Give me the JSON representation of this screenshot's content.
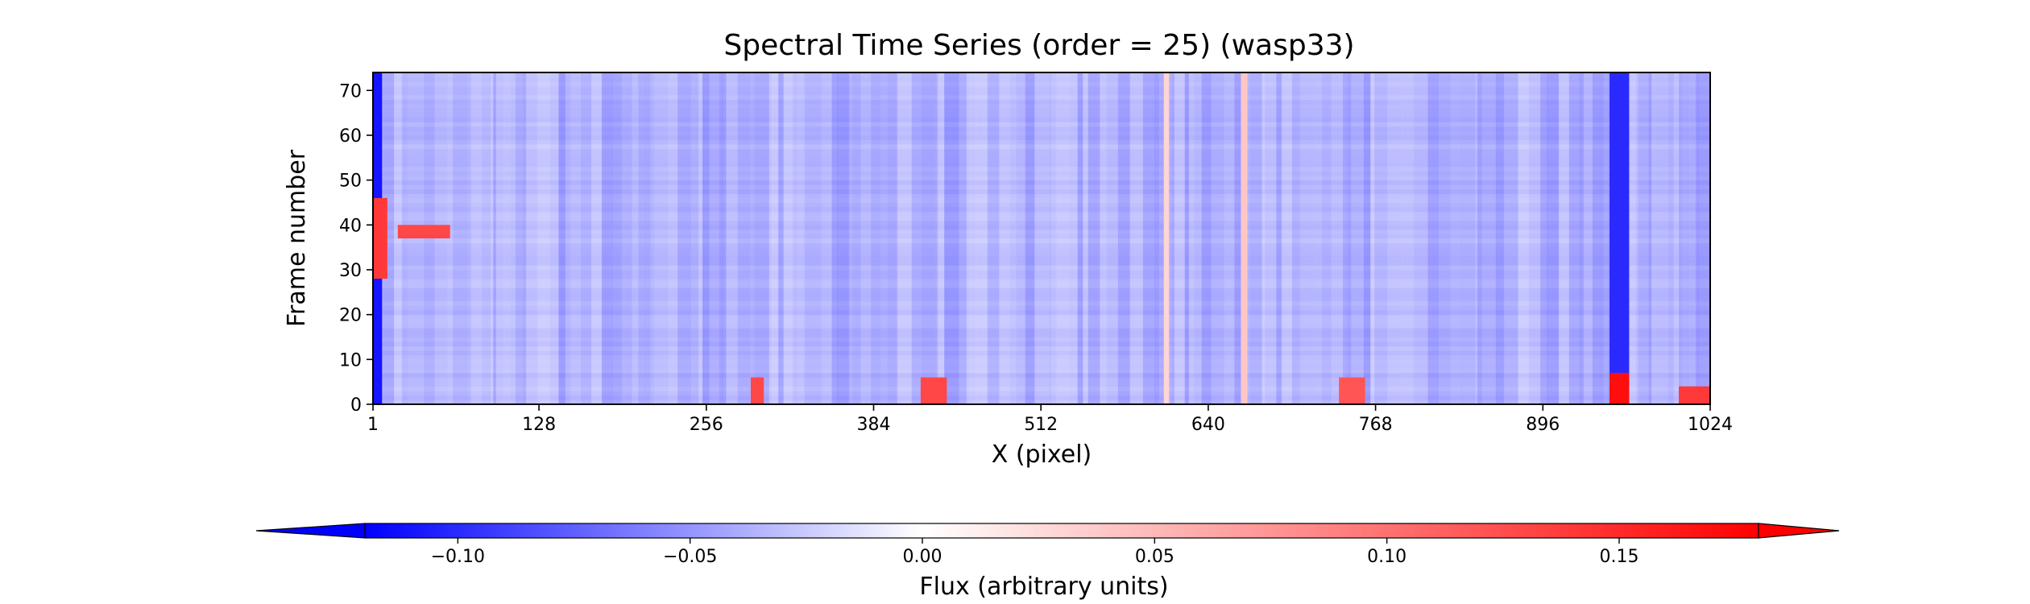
{
  "chart_data": {
    "type": "heatmap",
    "title": "Spectral Time Series (order = 25) (wasp33)",
    "xlabel": "X (pixel)",
    "ylabel": "Frame number",
    "xlim": [
      1,
      1024
    ],
    "ylim": [
      0,
      74
    ],
    "xticks": [
      1,
      128,
      256,
      384,
      512,
      640,
      768,
      896,
      1024
    ],
    "yticks": [
      0,
      10,
      20,
      30,
      40,
      50,
      60,
      70
    ],
    "colormap": "bwr",
    "colors": {
      "low": "#0000ff",
      "mid": "#ffffff",
      "high": "#ff0000"
    },
    "vmin": -0.12,
    "vmax": 0.18,
    "extend": "both",
    "grid": false,
    "colorbar": {
      "orientation": "horizontal",
      "location": "bottom",
      "label": "Flux (arbitrary units)",
      "ticks": [
        -0.1,
        -0.05,
        0.0,
        0.05,
        0.1,
        0.15
      ],
      "tick_labels": [
        "−0.10",
        "−0.05",
        "0.00",
        "0.05",
        "0.10",
        "0.15"
      ]
    },
    "features": [
      {
        "kind": "column",
        "x": [
          1,
          8
        ],
        "value": -0.11,
        "desc": "strong blue edge band"
      },
      {
        "kind": "region",
        "x": [
          1,
          12
        ],
        "y": [
          28,
          46
        ],
        "value": 0.14,
        "desc": "red patch at left edge"
      },
      {
        "kind": "region",
        "x": [
          20,
          60
        ],
        "y": [
          37,
          40
        ],
        "value": 0.13,
        "desc": "red stripe"
      },
      {
        "kind": "column",
        "x": [
          947,
          962
        ],
        "value": -0.1,
        "desc": "strong blue column"
      },
      {
        "kind": "region",
        "x": [
          947,
          962
        ],
        "y": [
          0,
          7
        ],
        "value": 0.17,
        "desc": "bright red block"
      },
      {
        "kind": "column",
        "x": [
          665,
          670
        ],
        "value": 0.04,
        "desc": "white vertical line"
      },
      {
        "kind": "column",
        "x": [
          606,
          610
        ],
        "value": 0.03,
        "desc": "white vertical line"
      },
      {
        "kind": "region",
        "x": [
          290,
          300
        ],
        "y": [
          0,
          6
        ],
        "value": 0.13,
        "desc": "red spots near bottom"
      },
      {
        "kind": "region",
        "x": [
          420,
          440
        ],
        "y": [
          0,
          6
        ],
        "value": 0.13,
        "desc": "red spots near bottom"
      },
      {
        "kind": "region",
        "x": [
          740,
          760
        ],
        "y": [
          0,
          6
        ],
        "value": 0.12,
        "desc": "red spots near bottom"
      },
      {
        "kind": "region",
        "x": [
          1000,
          1024
        ],
        "y": [
          0,
          4
        ],
        "value": 0.14,
        "desc": "red spots near bottom"
      }
    ]
  }
}
